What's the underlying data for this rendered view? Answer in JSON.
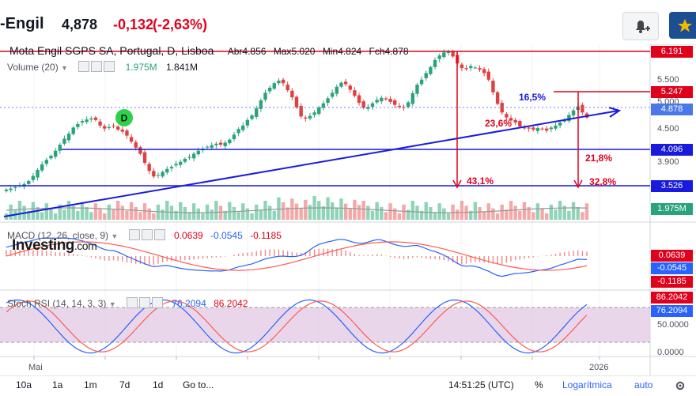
{
  "header": {
    "symbol": "-Engil",
    "price": "4,878",
    "change": "-0,132",
    "change_pct": "(-2,63%)"
  },
  "legend": {
    "title": "Mota Engil SGPS SA, Portugal, D, Lisboa",
    "open_label": "Abr",
    "open": "4.856",
    "high_label": "Max",
    "high": "5.020",
    "low_label": "Min",
    "low": "4.824",
    "close_label": "Fch",
    "close": "4.878",
    "volume_name": "Volume (20)",
    "volume_value": "1.975M",
    "volume_ma": "1.841M",
    "macd_name": "MACD (12, 26, close, 9)",
    "macd_hist": "0.0639",
    "macd_line": "-0.0545",
    "macd_signal": "-0.1185",
    "stoch_name": "Stoch RSI (14, 14, 3, 3)",
    "stoch_k": "76.2094",
    "stoch_d": "86.2042"
  },
  "price_scale": {
    "s1": "5.500",
    "s2": "5.000",
    "s3": "4.500",
    "s4": "3.900"
  },
  "tags": {
    "res1": "6.191",
    "res2": "5.247",
    "last": "4.878",
    "sup1": "4.096",
    "sup2": "3.526",
    "vol": "1.975M",
    "macd_hist": "0.0639",
    "macd_line": "-0.0545",
    "macd_signal": "-0.1185",
    "stoch_d": "86.2042",
    "stoch_k": "76.2094"
  },
  "stoch_scale": {
    "s1": "50.0000",
    "s2": "0.0000"
  },
  "annotations": {
    "p1": "16,5%",
    "p2": "23,6%",
    "p3": "21,8%",
    "p4": "43,1%",
    "p5": "32,8%"
  },
  "event_badge": "D",
  "watermark": {
    "brand": "Investing",
    "suffix": ".com"
  },
  "time_axis": {
    "t1": "Mai",
    "t2": "2026"
  },
  "footer": {
    "b10a": "10a",
    "b1a": "1a",
    "b1m": "1m",
    "b7d": "7d",
    "b1d": "1d",
    "goto": "Go to...",
    "time": "14:51:25 (UTC)",
    "pct": "%",
    "log": "Logarítmica",
    "auto": "auto"
  },
  "colors": {
    "up": "#2aa37b",
    "down": "#e0403f",
    "accent": "#1b4f8f",
    "resistance": "#e0001b",
    "support": "#1a1adf"
  },
  "chart_data": {
    "type": "candlestick",
    "title": "Mota Engil SGPS SA, Portugal, D, Lisboa",
    "close_series": [
      3.45,
      3.47,
      3.5,
      3.53,
      3.56,
      3.62,
      3.72,
      3.84,
      3.95,
      4.04,
      4.12,
      4.22,
      4.34,
      4.46,
      4.56,
      4.68,
      4.75,
      4.81,
      4.84,
      4.86,
      4.83,
      4.72,
      4.66,
      4.69,
      4.72,
      4.64,
      4.6,
      4.52,
      4.4,
      4.28,
      4.16,
      3.98,
      3.82,
      3.71,
      3.74,
      3.8,
      3.86,
      3.9,
      3.96,
      4.0,
      4.06,
      4.1,
      4.16,
      4.22,
      4.26,
      4.3,
      4.33,
      4.36,
      4.34,
      4.38,
      4.44,
      4.54,
      4.65,
      4.72,
      4.83,
      4.92,
      5.06,
      5.22,
      5.37,
      5.47,
      5.56,
      5.61,
      5.56,
      5.42,
      5.28,
      5.08,
      4.9,
      4.86,
      4.91,
      4.98,
      5.08,
      5.16,
      5.26,
      5.37,
      5.49,
      5.57,
      5.54,
      5.43,
      5.31,
      5.17,
      5.07,
      5.09,
      5.16,
      5.23,
      5.27,
      5.24,
      5.19,
      5.13,
      5.09,
      5.07,
      5.18,
      5.36,
      5.53,
      5.63,
      5.76,
      5.88,
      6.02,
      6.11,
      6.17,
      6.18,
      6.09,
      5.95,
      5.86,
      5.84,
      5.9,
      5.87,
      5.83,
      5.76,
      5.63,
      5.38,
      5.15,
      4.98,
      4.88,
      4.82,
      4.78,
      4.7,
      4.68,
      4.66,
      4.64,
      4.67,
      4.65,
      4.62,
      4.68,
      4.72,
      4.78,
      4.84,
      4.93,
      5.02,
      5.1,
      4.98,
      4.878
    ],
    "levels": [
      {
        "value": 6.191,
        "color": "red"
      },
      {
        "value": 5.247,
        "color": "red"
      },
      {
        "value": 4.096,
        "color": "blue"
      },
      {
        "value": 3.526,
        "color": "blue"
      }
    ],
    "last_price": 4.878,
    "volume_last": "1.975M",
    "macd": {
      "hist": 0.0639,
      "macd": -0.0545,
      "signal": -0.1185
    },
    "stoch_rsi": {
      "k": 76.2094,
      "d": 86.2042
    },
    "x_ticks": [
      "Mai",
      "2026"
    ]
  }
}
